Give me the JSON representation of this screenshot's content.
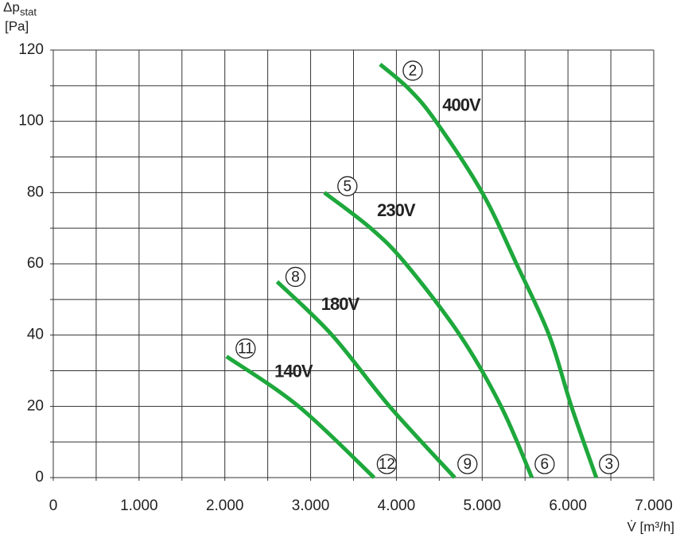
{
  "chart_data": {
    "type": "line",
    "ylabel": {
      "symbol": "Δp",
      "subscript": "stat",
      "unit": "[Pa]"
    },
    "xlabel": "V̇ [m³/h]",
    "xlim": [
      0,
      7000
    ],
    "ylim": [
      0,
      120
    ],
    "xticks": [
      0,
      {
        "value": 1000,
        "label": "1.000"
      },
      {
        "value": 2000,
        "label": "2.000"
      },
      {
        "value": 3000,
        "label": "3.000"
      },
      {
        "value": 4000,
        "label": "4.000"
      },
      {
        "value": 5000,
        "label": "5.000"
      },
      {
        "value": 6000,
        "label": "6.000"
      },
      {
        "value": 7000,
        "label": "7.000"
      }
    ],
    "xminorticks": [
      500,
      1500,
      2500,
      3500,
      4500,
      5500,
      6500
    ],
    "yticks": [
      0,
      20,
      40,
      60,
      80,
      100,
      120
    ],
    "yminorticks": [
      10,
      30,
      50,
      70,
      90,
      110
    ],
    "grid": true,
    "series": [
      {
        "name": "400V",
        "color": "#1ea83c",
        "start_label": "2",
        "end_label": "3",
        "x": [
          3810,
          4150,
          4460,
          5000,
          5400,
          5780,
          6040,
          6330
        ],
        "values": [
          116,
          109,
          100,
          80,
          60,
          40,
          20,
          0
        ]
      },
      {
        "name": "230V",
        "color": "#1ea83c",
        "start_label": "5",
        "end_label": "6",
        "x": [
          3160,
          3700,
          4110,
          4740,
          5220,
          5580
        ],
        "values": [
          80,
          70,
          60,
          40,
          20,
          0
        ]
      },
      {
        "name": "180V",
        "color": "#1ea83c",
        "start_label": "8",
        "end_label": "9",
        "x": [
          2610,
          3250,
          3920,
          4680
        ],
        "values": [
          55,
          40,
          20,
          0
        ]
      },
      {
        "name": "140V",
        "color": "#1ea83c",
        "start_label": "11",
        "end_label": "12",
        "x": [
          2020,
          2860,
          3740
        ],
        "values": [
          34,
          20,
          0
        ]
      }
    ]
  }
}
